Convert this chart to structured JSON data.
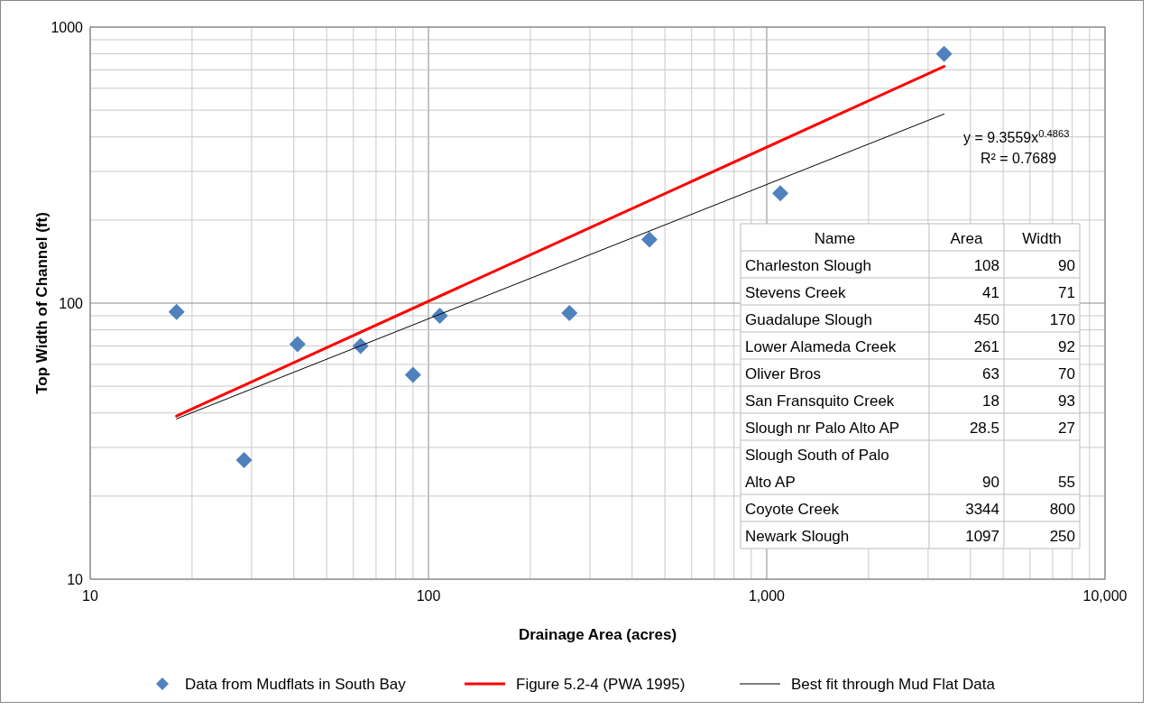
{
  "chart_data": [
    {
      "type": "scatter",
      "xlabel": "Drainage Area (acres)",
      "ylabel": "Top Width of Channel (ft)",
      "log": "xy",
      "grid": true,
      "legend": "bottom",
      "xlim": [
        10,
        10000
      ],
      "xticks": [
        10,
        100,
        {
          "value": 1000,
          "label": "1,000"
        },
        {
          "value": 10000,
          "label": "10,000"
        }
      ],
      "ylim": [
        10,
        1000
      ],
      "yticks": [
        10,
        100,
        1000
      ],
      "series": [
        {
          "name": "Data from Mudflats in South Bay",
          "type": "scatter",
          "marker": "diamond",
          "color": "#4f81bd",
          "x": [
            108,
            41,
            450,
            261,
            63,
            18,
            28.5,
            90,
            3344,
            1097
          ],
          "values": [
            90,
            71,
            170,
            92,
            70,
            93,
            27,
            55,
            800,
            250
          ]
        },
        {
          "name": "Figure 5.2-4 (PWA 1995)",
          "type": "line",
          "color": "#ff0000",
          "x": [
            18,
            3344
          ],
          "values": [
            39,
            720
          ]
        },
        {
          "name": "Best fit through Mud Flat Data",
          "type": "line",
          "color": "#000000",
          "x": [
            18,
            3344
          ],
          "values": [
            38.1,
            484
          ]
        }
      ],
      "annotations": [
        "y = 9.3559x$^{0.4863}$",
        "R² = 0.7689"
      ]
    },
    {
      "type": "other",
      "annotations": [
        "Name",
        "Area",
        "Width",
        "Charleston Slough",
        "108",
        "90",
        "Stevens Creek",
        "41",
        "71",
        "Guadalupe Slough",
        "450",
        "170",
        "Lower Alameda Creek",
        "261",
        "92",
        "Oliver Bros",
        "63",
        "70",
        "San Fransquito Creek",
        "18",
        "93",
        "Slough nr Palo Alto AP",
        "28.5",
        "27",
        "Slough South of Palo Alto AP",
        "90",
        "55",
        "Coyote Creek",
        "3344",
        "800",
        "Newark Slough",
        "1097",
        "250"
      ]
    }
  ]
}
